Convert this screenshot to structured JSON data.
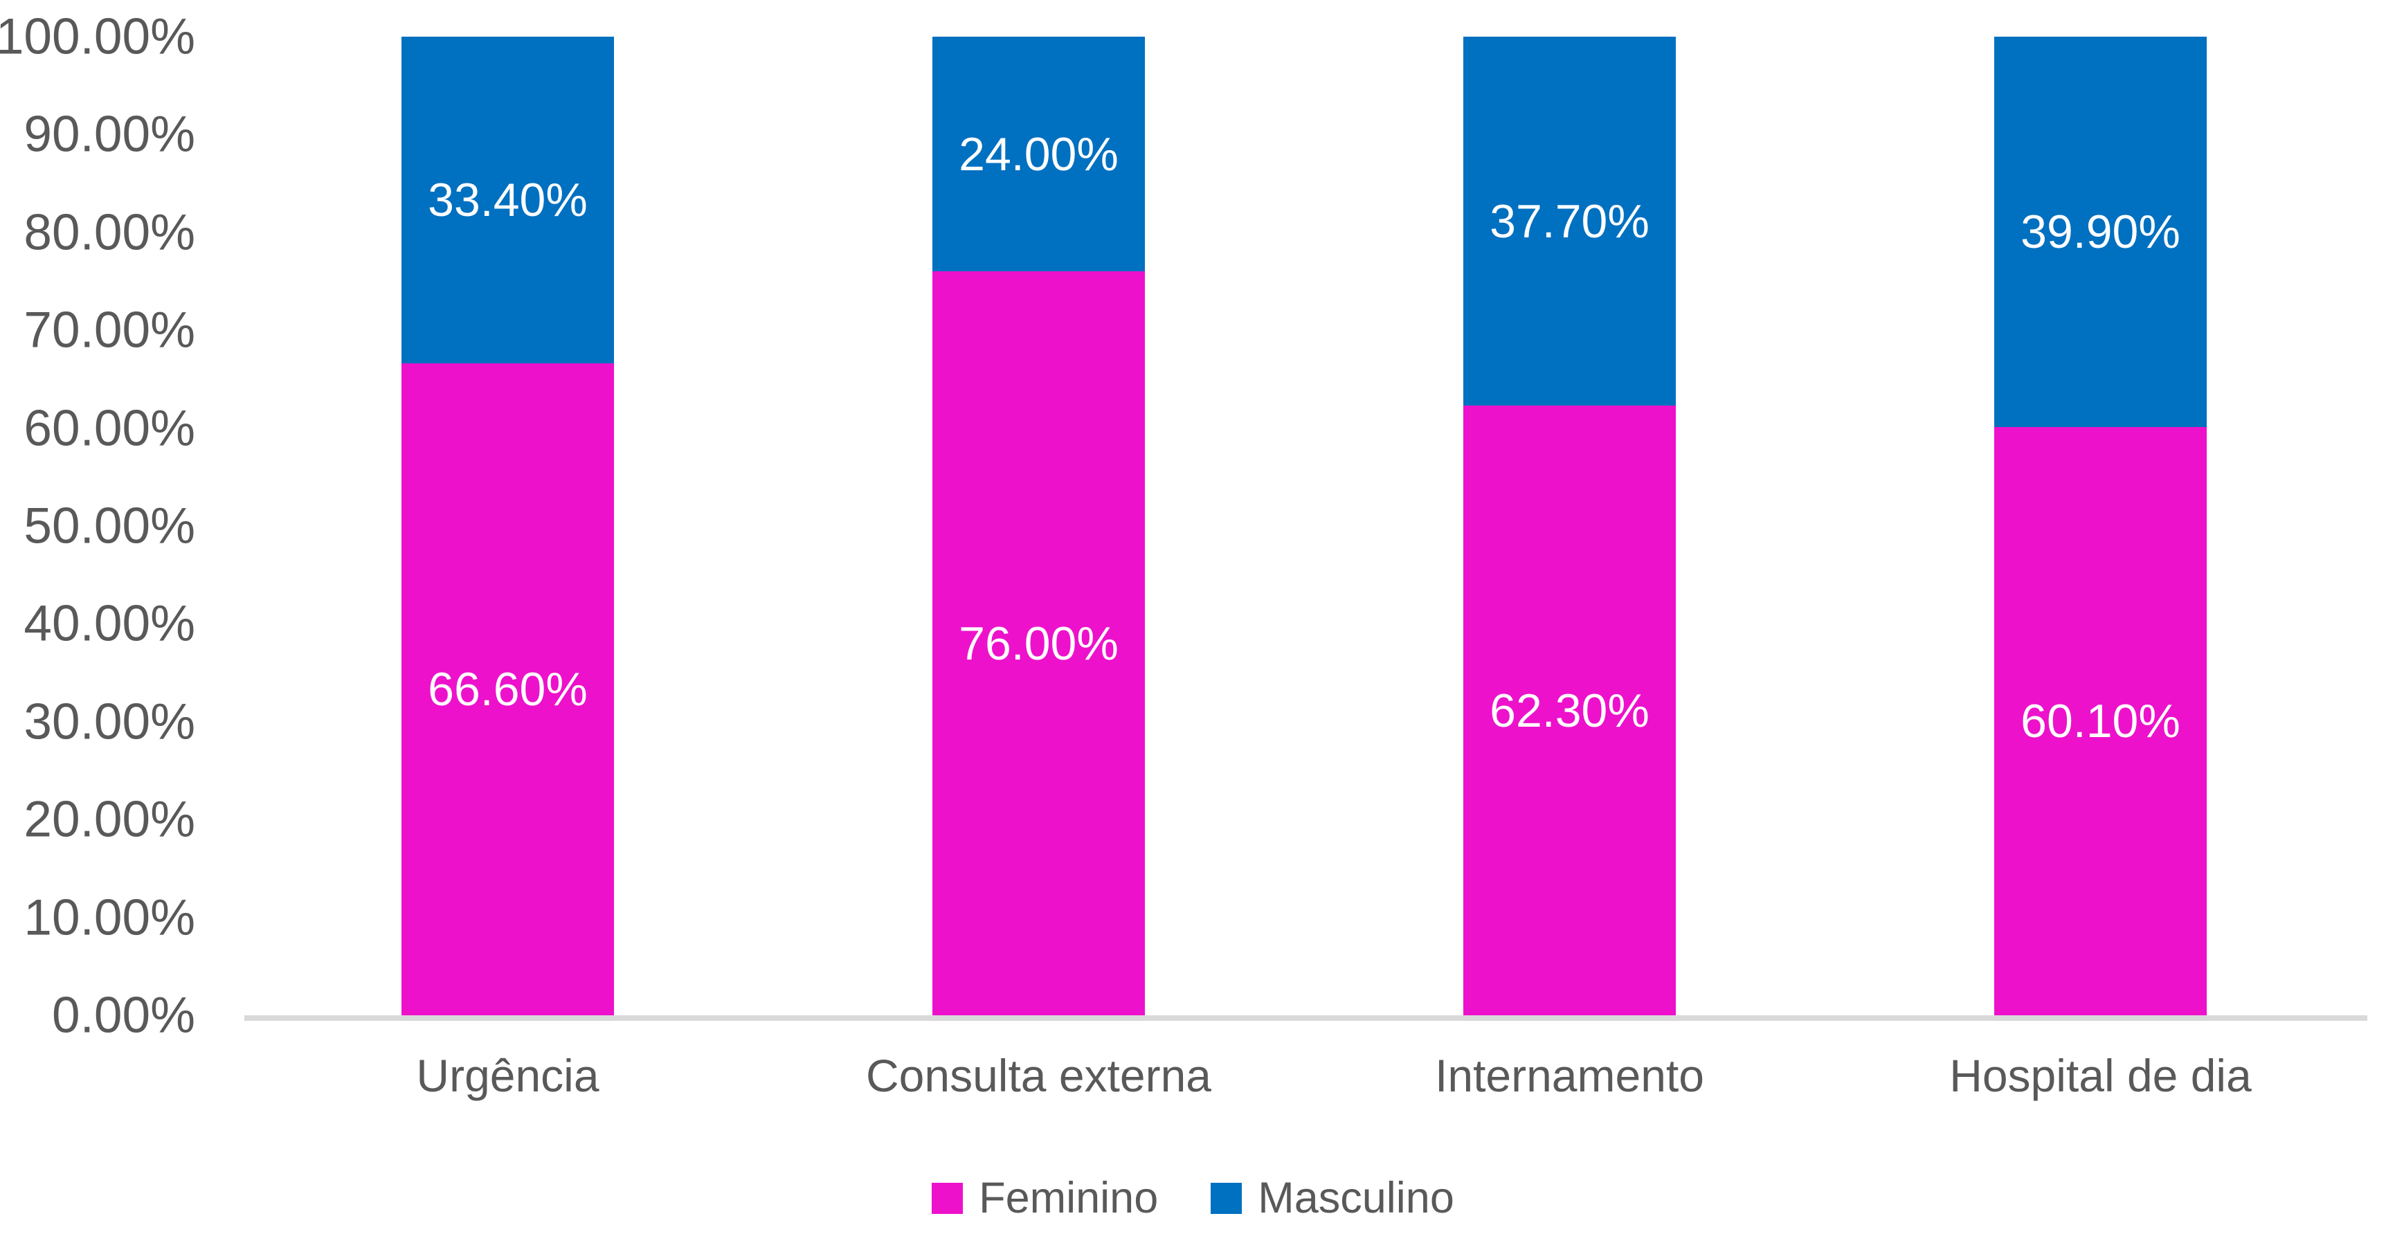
{
  "chart_data": {
    "type": "bar",
    "subtype": "stacked-100-percent-column",
    "title": "",
    "xlabel": "",
    "ylabel": "",
    "grid": false,
    "legend_position": "bottom",
    "categories": [
      "Urgência",
      "Consulta externa",
      "Internamento",
      "Hospital de dia"
    ],
    "series": [
      {
        "name": "Feminino",
        "color": "#ED11CB",
        "values": [
          66.6,
          76.0,
          62.3,
          60.1
        ],
        "labels": [
          "66.60%",
          "76.00%",
          "62.30%",
          "60.10%"
        ]
      },
      {
        "name": "Masculino",
        "color": "#0070C0",
        "values": [
          33.4,
          24.0,
          37.7,
          39.9
        ],
        "labels": [
          "33.40%",
          "24.00%",
          "37.70%",
          "39.90%"
        ]
      }
    ],
    "y_axis": {
      "min": 0,
      "max": 100,
      "step": 10,
      "tick_labels": [
        "0.00%",
        "10.00%",
        "20.00%",
        "30.00%",
        "40.00%",
        "50.00%",
        "60.00%",
        "70.00%",
        "80.00%",
        "90.00%",
        "100.00%"
      ]
    },
    "colors": {
      "axis_line": "#D9D9D9",
      "tick_text": "#595959",
      "data_label_text": "#FFFFFF",
      "background": "#FFFFFF"
    }
  }
}
